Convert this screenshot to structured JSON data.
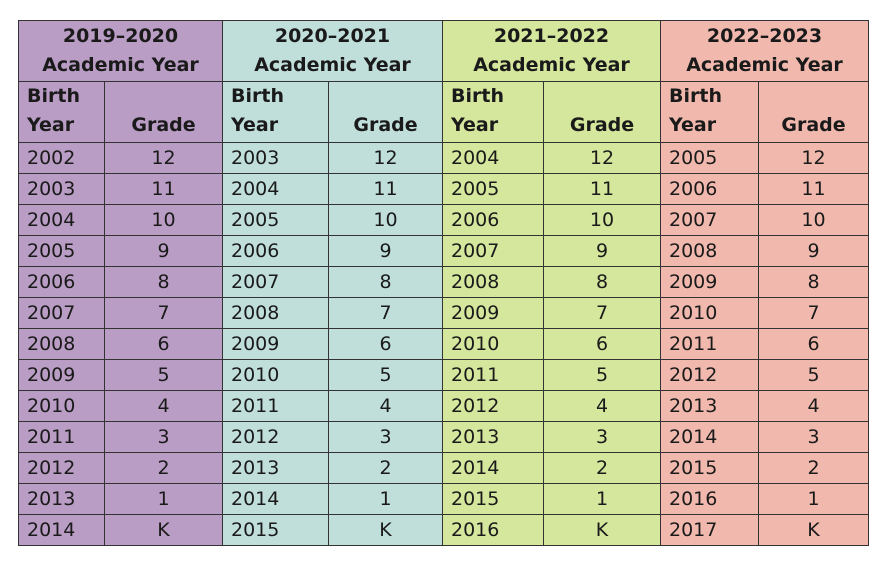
{
  "table": {
    "sections": [
      {
        "period": "2019–2020",
        "subtitle": "Academic Year",
        "color": "#b99dc4",
        "headers": [
          "Birth Year",
          "Grade"
        ],
        "rows": [
          [
            2002,
            12
          ],
          [
            2003,
            11
          ],
          [
            2004,
            10
          ],
          [
            2005,
            9
          ],
          [
            2006,
            8
          ],
          [
            2007,
            7
          ],
          [
            2008,
            6
          ],
          [
            2009,
            5
          ],
          [
            2010,
            4
          ],
          [
            2011,
            3
          ],
          [
            2012,
            2
          ],
          [
            2013,
            1
          ],
          [
            2014,
            "K"
          ]
        ]
      },
      {
        "period": "2020–2021",
        "subtitle": "Academic Year",
        "color": "#c0dfdb",
        "headers": [
          "Birth Year",
          "Grade"
        ],
        "rows": [
          [
            2003,
            12
          ],
          [
            2004,
            11
          ],
          [
            2005,
            10
          ],
          [
            2006,
            9
          ],
          [
            2007,
            8
          ],
          [
            2008,
            7
          ],
          [
            2009,
            6
          ],
          [
            2010,
            5
          ],
          [
            2011,
            4
          ],
          [
            2012,
            3
          ],
          [
            2013,
            2
          ],
          [
            2014,
            1
          ],
          [
            2015,
            "K"
          ]
        ]
      },
      {
        "period": "2021–2022",
        "subtitle": "Academic Year",
        "color": "#d5e69d",
        "headers": [
          "Birth Year",
          "Grade"
        ],
        "rows": [
          [
            2004,
            12
          ],
          [
            2005,
            11
          ],
          [
            2006,
            10
          ],
          [
            2007,
            9
          ],
          [
            2008,
            8
          ],
          [
            2009,
            7
          ],
          [
            2010,
            6
          ],
          [
            2011,
            5
          ],
          [
            2012,
            4
          ],
          [
            2013,
            3
          ],
          [
            2014,
            2
          ],
          [
            2015,
            1
          ],
          [
            2016,
            "K"
          ]
        ]
      },
      {
        "period": "2022–2023",
        "subtitle": "Academic Year",
        "color": "#f1b9ae",
        "headers": [
          "Birth Year",
          "Grade"
        ],
        "rows": [
          [
            2005,
            12
          ],
          [
            2006,
            11
          ],
          [
            2007,
            10
          ],
          [
            2008,
            9
          ],
          [
            2009,
            8
          ],
          [
            2010,
            7
          ],
          [
            2011,
            6
          ],
          [
            2012,
            5
          ],
          [
            2013,
            4
          ],
          [
            2014,
            3
          ],
          [
            2015,
            2
          ],
          [
            2016,
            1
          ],
          [
            2017,
            "K"
          ]
        ]
      }
    ]
  }
}
